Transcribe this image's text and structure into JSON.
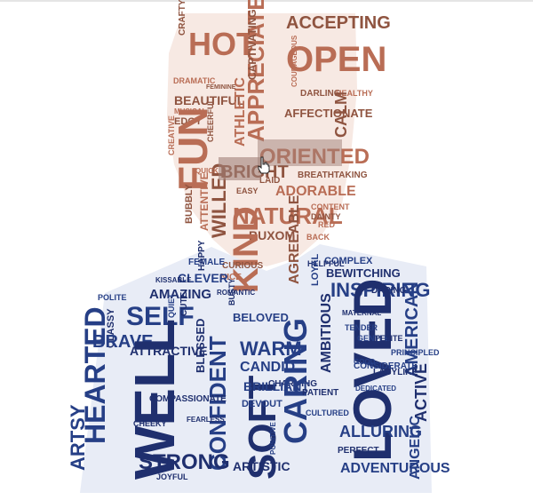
{
  "canvas": {
    "background": "#ffffff"
  },
  "colors": {
    "head": "#b96d55",
    "head_alt": "#8f5440",
    "body": "#263f86",
    "body_alt": "#1f2f6e"
  },
  "word_cloud": {
    "head_words": [
      "HOT",
      "ACCEPTING",
      "OPEN",
      "CRAFTY",
      "APPRECIATED",
      "BEAUTIFUL",
      "ATHLETIC",
      "AFFECTIONATE",
      "DRAMATIC",
      "FEMININE",
      "MUSICAL",
      "EDGY",
      "COURAGEOUS",
      "DARLING",
      "HEALTHY",
      "CAPTIVATING",
      "FUN",
      "BRIGHT",
      "ORIENTED",
      "CALM",
      "CREATIVE",
      "CHEERFUL",
      "ADORABLE",
      "BREATHTAKING",
      "NATURAL",
      "BUXOM",
      "CONTENT",
      "DAINTY",
      "RED",
      "BUBBLY",
      "ATTENTIVE",
      "WILLED",
      "KIND",
      "AGREEABLE",
      "BACK",
      "CURIOUS",
      "NICE",
      "EASY",
      "QUICK",
      "LAID"
    ],
    "body_words": [
      "COMPLEX",
      "BEWITCHING",
      "CLEVER",
      "AMAZING",
      "INSPIRING",
      "DARING",
      "SELF",
      "CLASSY",
      "QUIET",
      "CUTE",
      "BELOVED",
      "BUSTY",
      "BRAVE",
      "BLESSED",
      "WARM",
      "LOVED",
      "AMERICAN",
      "ACTIVE",
      "ANGELIC",
      "WELL",
      "HEARTED",
      "ATTRACTIVE",
      "CANDID",
      "CHARMING",
      "CARING",
      "AMBITIOUS",
      "CONFIDENT",
      "SOFT",
      "BRILLIANT",
      "COMPASSIONATE",
      "ALLURING",
      "STRONG",
      "ARTSY",
      "ARTISTIC",
      "ADVENTUROUS",
      "JOYFUL",
      "GENTLE",
      "PETITE",
      "CONSIDERATE",
      "LADYLIKE",
      "PRINCIPLED",
      "MATERNAL",
      "DEVOUT",
      "PERFECT",
      "POLITE",
      "KISSABLE",
      "FEMALE",
      "HELPFUL",
      "DEDICATED",
      "ROMANTIC",
      "POSITIVE",
      "PATIENT",
      "CULTURED",
      "HAPPY",
      "LOYAL",
      "CHEEKY",
      "GOOD",
      "FEARLESS",
      "TENDER",
      "SMART"
    ]
  }
}
